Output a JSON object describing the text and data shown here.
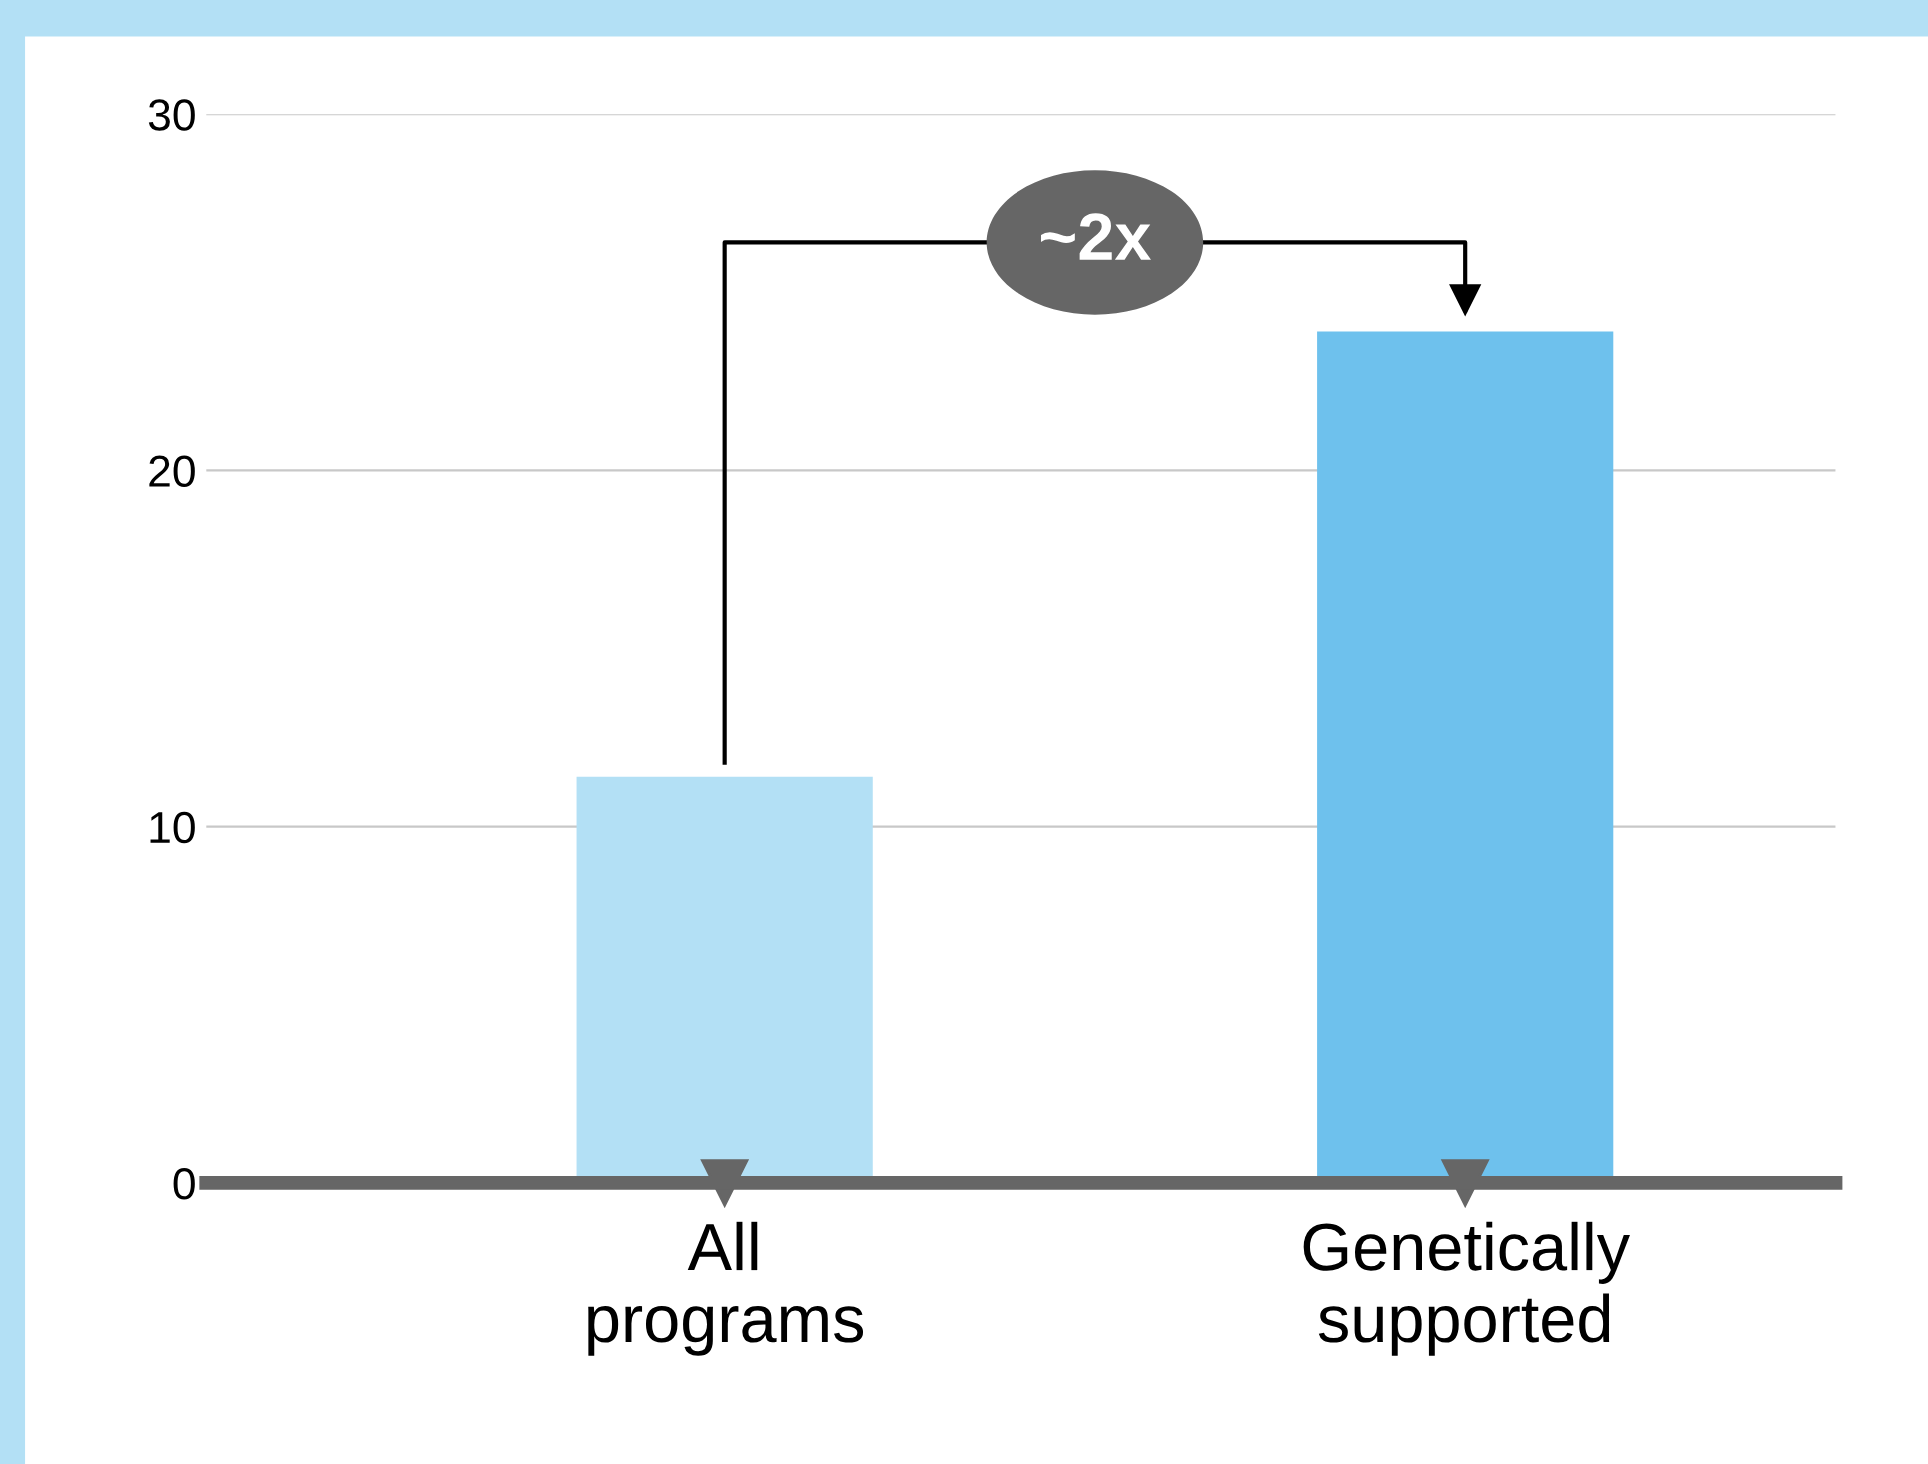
{
  "chart_data": {
    "type": "bar",
    "categories": [
      "All\nprograms",
      "Genetically\nsupported"
    ],
    "values": [
      11.4,
      23.9
    ],
    "colors": [
      "#b3e0f5",
      "#6ec1ed"
    ],
    "ylim": [
      0,
      30
    ],
    "yticks": [
      0,
      10,
      20,
      30
    ],
    "grid": "y",
    "legend": false,
    "annotations": [
      "~2x"
    ]
  }
}
